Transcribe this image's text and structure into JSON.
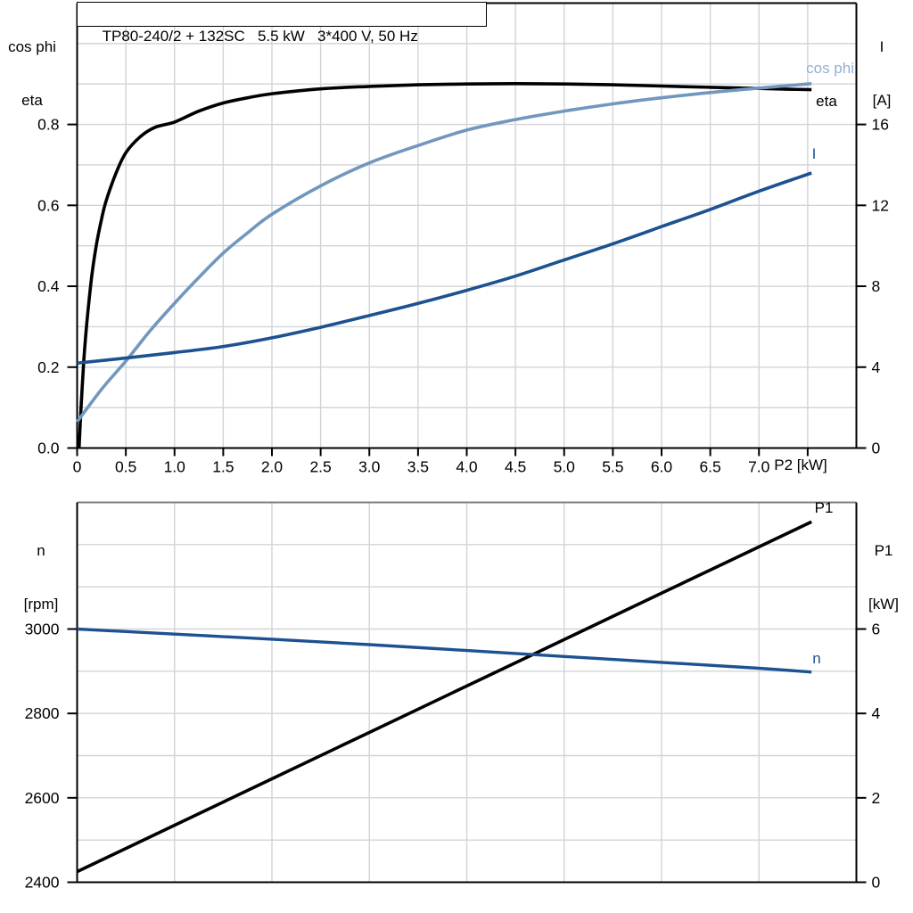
{
  "title_box": "TP80-240/2 + 132SC   5.5 kW   3*400 V, 50 Hz",
  "colors": {
    "black": "#000000",
    "cos_phi_curve": "#7297BE",
    "cos_phi_label": "#92AFD2",
    "dark_blue": "#1D5191",
    "grid": "#D1D4D8",
    "muted_border": "#7F7F7F",
    "background": "#FFFFFF"
  },
  "top_chart_headers": {
    "left_line1": "cos phi",
    "left_line2": "eta",
    "right_line1": "I",
    "right_line2": "[A]"
  },
  "bottom_chart_headers": {
    "left_line1": "n",
    "left_line2": "[rpm]",
    "right_line1": "P1",
    "right_line2": "[kW]"
  },
  "curve_labels": {
    "cos_phi": "cos phi",
    "eta": "eta",
    "current": "I",
    "p1": "P1",
    "n": "n"
  },
  "chart_data": [
    {
      "type": "line",
      "title": "TP80-240/2 + 132SC   5.5 kW   3*400 V, 50 Hz",
      "xlabel": "P2 [kW]",
      "x_axis": {
        "min": 0,
        "max": 8,
        "ticks": [
          {
            "v": 0,
            "label": "0"
          },
          {
            "v": 0.5,
            "label": "0.5"
          },
          {
            "v": 1,
            "label": "1.0"
          },
          {
            "v": 1.5,
            "label": "1.5"
          },
          {
            "v": 2,
            "label": "2.0"
          },
          {
            "v": 2.5,
            "label": "2.5"
          },
          {
            "v": 3,
            "label": "3.0"
          },
          {
            "v": 3.5,
            "label": "3.5"
          },
          {
            "v": 4,
            "label": "4.0"
          },
          {
            "v": 4.5,
            "label": "4.5"
          },
          {
            "v": 5,
            "label": "5.0"
          },
          {
            "v": 5.5,
            "label": "5.5"
          },
          {
            "v": 6,
            "label": "6.0"
          },
          {
            "v": 6.5,
            "label": "6.5"
          },
          {
            "v": 7,
            "label": "7.0"
          },
          {
            "v": 7.5,
            "label": ""
          }
        ],
        "grid": [
          0.5,
          1,
          1.5,
          2,
          2.5,
          3,
          3.5,
          4,
          4.5,
          5,
          5.5,
          6,
          6.5,
          7,
          7.5
        ]
      },
      "y_left": {
        "label": "cos phi / eta",
        "min": 0,
        "max": 1.1,
        "ticks": [
          {
            "v": 0,
            "label": "0.0"
          },
          {
            "v": 0.2,
            "label": "0.2"
          },
          {
            "v": 0.4,
            "label": "0.4"
          },
          {
            "v": 0.6,
            "label": "0.6"
          },
          {
            "v": 0.8,
            "label": "0.8"
          }
        ],
        "grid": [
          0.1,
          0.2,
          0.3,
          0.4,
          0.5,
          0.6,
          0.7,
          0.8,
          0.9,
          1.0
        ]
      },
      "y_right": {
        "label": "I [A]",
        "min": 0,
        "max": 22,
        "ticks": [
          {
            "v": 0,
            "label": "0"
          },
          {
            "v": 4,
            "label": "4"
          },
          {
            "v": 8,
            "label": "8"
          },
          {
            "v": 12,
            "label": "12"
          },
          {
            "v": 16,
            "label": "16"
          }
        ]
      },
      "border_top": "black",
      "series": [
        {
          "name": "eta",
          "axis": "left",
          "color": "black",
          "width": 3.6,
          "points": [
            [
              0.02,
              0.0
            ],
            [
              0.04,
              0.1
            ],
            [
              0.07,
              0.22
            ],
            [
              0.1,
              0.31
            ],
            [
              0.15,
              0.425
            ],
            [
              0.2,
              0.505
            ],
            [
              0.25,
              0.565
            ],
            [
              0.3,
              0.613
            ],
            [
              0.4,
              0.68
            ],
            [
              0.5,
              0.73
            ],
            [
              0.65,
              0.77
            ],
            [
              0.8,
              0.793
            ],
            [
              1.0,
              0.806
            ],
            [
              1.25,
              0.833
            ],
            [
              1.5,
              0.853
            ],
            [
              1.75,
              0.866
            ],
            [
              2.0,
              0.876
            ],
            [
              2.5,
              0.888
            ],
            [
              3.0,
              0.894
            ],
            [
              3.5,
              0.898
            ],
            [
              4.0,
              0.9
            ],
            [
              4.5,
              0.901
            ],
            [
              5.0,
              0.9
            ],
            [
              5.5,
              0.898
            ],
            [
              6.0,
              0.895
            ],
            [
              6.5,
              0.892
            ],
            [
              7.0,
              0.889
            ],
            [
              7.54,
              0.886
            ]
          ]
        },
        {
          "name": "cos phi",
          "axis": "left",
          "color": "cos_phi_curve",
          "width": 3.6,
          "points": [
            [
              0.0,
              0.065
            ],
            [
              0.25,
              0.145
            ],
            [
              0.5,
              0.215
            ],
            [
              0.75,
              0.29
            ],
            [
              1.0,
              0.358
            ],
            [
              1.25,
              0.422
            ],
            [
              1.5,
              0.482
            ],
            [
              1.75,
              0.532
            ],
            [
              2.0,
              0.578
            ],
            [
              2.5,
              0.648
            ],
            [
              3.0,
              0.705
            ],
            [
              3.5,
              0.748
            ],
            [
              4.0,
              0.786
            ],
            [
              4.5,
              0.812
            ],
            [
              5.0,
              0.833
            ],
            [
              5.5,
              0.851
            ],
            [
              6.0,
              0.866
            ],
            [
              6.5,
              0.879
            ],
            [
              7.0,
              0.89
            ],
            [
              7.54,
              0.901
            ]
          ]
        },
        {
          "name": "I",
          "axis": "right",
          "color": "dark_blue",
          "width": 3.6,
          "points": [
            [
              0.0,
              4.2
            ],
            [
              0.5,
              4.45
            ],
            [
              1.0,
              4.72
            ],
            [
              1.5,
              5.02
            ],
            [
              2.0,
              5.45
            ],
            [
              2.5,
              5.97
            ],
            [
              3.0,
              6.55
            ],
            [
              3.5,
              7.15
            ],
            [
              4.0,
              7.8
            ],
            [
              4.5,
              8.5
            ],
            [
              5.0,
              9.3
            ],
            [
              5.5,
              10.1
            ],
            [
              6.0,
              10.95
            ],
            [
              6.5,
              11.8
            ],
            [
              7.0,
              12.7
            ],
            [
              7.54,
              13.6
            ]
          ]
        }
      ]
    },
    {
      "type": "line",
      "title": "",
      "xlabel": "",
      "x_axis": {
        "min": 0,
        "max": 8,
        "ticks": [],
        "grid": [
          1,
          2,
          3,
          4,
          5,
          6,
          7
        ]
      },
      "y_left": {
        "label": "n [rpm]",
        "min": 2400,
        "max": 3300,
        "ticks": [
          {
            "v": 2400,
            "label": "2400"
          },
          {
            "v": 2600,
            "label": "2600"
          },
          {
            "v": 2800,
            "label": "2800"
          },
          {
            "v": 3000,
            "label": "3000"
          }
        ],
        "grid": [
          2500,
          2600,
          2700,
          2800,
          2900,
          3000,
          3100,
          3200
        ]
      },
      "y_right": {
        "label": "P1 [kW]",
        "min": 0,
        "max": 9,
        "ticks": [
          {
            "v": 0,
            "label": "0"
          },
          {
            "v": 2,
            "label": "2"
          },
          {
            "v": 4,
            "label": "4"
          },
          {
            "v": 6,
            "label": "6"
          }
        ]
      },
      "border_top": "muted_border",
      "series": [
        {
          "name": "P1",
          "axis": "right",
          "color": "black",
          "width": 3.6,
          "points": [
            [
              0.0,
              0.25
            ],
            [
              2.0,
              2.45
            ],
            [
              4.0,
              4.65
            ],
            [
              6.0,
              6.85
            ],
            [
              7.54,
              8.54
            ]
          ]
        },
        {
          "name": "n",
          "axis": "left",
          "color": "dark_blue",
          "width": 3.4,
          "points": [
            [
              0.0,
              3000
            ],
            [
              1.0,
              2988
            ],
            [
              2.0,
              2976
            ],
            [
              3.0,
              2963
            ],
            [
              4.0,
              2949
            ],
            [
              5.0,
              2935
            ],
            [
              6.0,
              2921
            ],
            [
              7.0,
              2907
            ],
            [
              7.54,
              2898
            ]
          ]
        }
      ]
    }
  ]
}
